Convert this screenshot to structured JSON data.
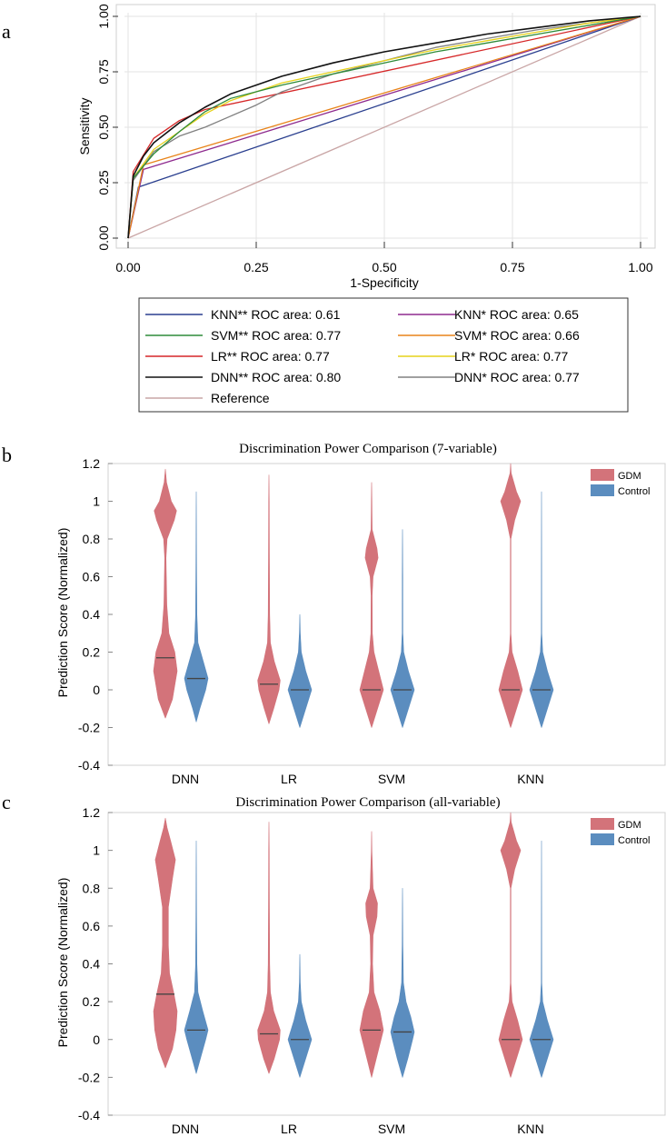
{
  "panel_labels": {
    "a": "a",
    "b": "b",
    "c": "c"
  },
  "colors": {
    "knn2": "#2a3f8f",
    "svm2": "#2e8b3a",
    "lr2": "#d62728",
    "dnn2": "#111111",
    "knn1": "#8e2a8e",
    "svm1": "#e8841a",
    "lr1": "#e6d21a",
    "dnn1": "#808080",
    "ref": "#c9a5a5",
    "gdm": "#d3737a",
    "control": "#5b8dbf",
    "median": "#444444"
  },
  "chart_data": [
    {
      "id": "roc",
      "type": "line",
      "title": "",
      "xlabel": "1-Specificity",
      "ylabel": "Sensitivity",
      "xlim": [
        0,
        1
      ],
      "ylim": [
        0,
        1
      ],
      "x_ticks": [
        "0.00",
        "0.25",
        "0.50",
        "0.75",
        "1.00"
      ],
      "y_ticks": [
        "0.00",
        "0.25",
        "0.50",
        "0.75",
        "1.00"
      ],
      "grid": true,
      "legend_position": "bottom",
      "series": [
        {
          "key": "knn2",
          "name": "KNN** ROC area: 0.61",
          "x": [
            0,
            0.02,
            1
          ],
          "y": [
            0,
            0.23,
            1
          ]
        },
        {
          "key": "svm2",
          "name": "SVM** ROC area: 0.77",
          "x": [
            0,
            0.01,
            0.05,
            0.1,
            0.15,
            0.2,
            0.3,
            0.4,
            0.5,
            0.6,
            0.7,
            0.8,
            0.9,
            1
          ],
          "y": [
            0,
            0.27,
            0.38,
            0.48,
            0.57,
            0.63,
            0.69,
            0.74,
            0.79,
            0.84,
            0.88,
            0.92,
            0.96,
            1
          ]
        },
        {
          "key": "lr2",
          "name": "LR** ROC area: 0.77",
          "x": [
            0,
            0.01,
            0.05,
            0.1,
            0.15,
            1
          ],
          "y": [
            0,
            0.3,
            0.45,
            0.53,
            0.58,
            1
          ]
        },
        {
          "key": "dnn2",
          "name": "DNN** ROC area: 0.80",
          "x": [
            0,
            0.01,
            0.03,
            0.05,
            0.1,
            0.15,
            0.2,
            0.3,
            0.4,
            0.5,
            0.6,
            0.7,
            0.8,
            0.9,
            1
          ],
          "y": [
            0,
            0.28,
            0.37,
            0.43,
            0.52,
            0.59,
            0.65,
            0.73,
            0.79,
            0.84,
            0.88,
            0.92,
            0.95,
            0.98,
            1
          ]
        },
        {
          "key": "knn1",
          "name": "KNN* ROC area: 0.65",
          "x": [
            0,
            0.03,
            1
          ],
          "y": [
            0,
            0.31,
            1
          ]
        },
        {
          "key": "svm1",
          "name": "SVM* ROC area: 0.66",
          "x": [
            0,
            0.03,
            1
          ],
          "y": [
            0,
            0.33,
            1
          ]
        },
        {
          "key": "lr1",
          "name": "LR* ROC area: 0.77",
          "x": [
            0,
            0.01,
            0.05,
            0.1,
            0.15,
            0.2,
            0.3,
            0.4,
            0.5,
            0.6,
            0.7,
            0.8,
            0.9,
            1
          ],
          "y": [
            0,
            0.27,
            0.4,
            0.48,
            0.56,
            0.62,
            0.7,
            0.75,
            0.8,
            0.85,
            0.89,
            0.93,
            0.97,
            1
          ]
        },
        {
          "key": "dnn1",
          "name": "DNN* ROC area: 0.77",
          "x": [
            0,
            0.01,
            0.05,
            0.1,
            0.15,
            0.2,
            0.25,
            0.3,
            0.4,
            0.5,
            0.6,
            0.7,
            0.8,
            0.9,
            1
          ],
          "y": [
            0,
            0.26,
            0.39,
            0.46,
            0.5,
            0.55,
            0.6,
            0.66,
            0.74,
            0.8,
            0.86,
            0.9,
            0.94,
            0.97,
            1
          ]
        },
        {
          "key": "ref",
          "name": "Reference",
          "x": [
            0,
            1
          ],
          "y": [
            0,
            1
          ]
        }
      ]
    },
    {
      "id": "violin7",
      "type": "violin",
      "title": "Discrimination Power Comparison (7-variable)",
      "xlabel": "",
      "ylabel": "Prediction Score (Normalized)",
      "ylim": [
        -0.4,
        1.2
      ],
      "y_ticks": [
        "-0.4",
        "-0.2",
        "0",
        "0.2",
        "0.4",
        "0.6",
        "0.8",
        "1",
        "1.2"
      ],
      "categories": [
        "DNN",
        "LR",
        "SVM",
        "KNN"
      ],
      "legend": [
        "GDM",
        "Control"
      ],
      "legend_position": "top-right",
      "series": [
        {
          "name": "GDM",
          "medians": [
            0.17,
            0.03,
            0.0,
            0.0
          ],
          "shapes": [
            [
              [
                -0.15,
                0
              ],
              [
                -0.05,
                0.6
              ],
              [
                0.1,
                1.0
              ],
              [
                0.2,
                0.8
              ],
              [
                0.3,
                0.3
              ],
              [
                0.45,
                0.12
              ],
              [
                0.7,
                0.05
              ],
              [
                0.8,
                0.15
              ],
              [
                0.9,
                0.75
              ],
              [
                0.95,
                0.95
              ],
              [
                1.0,
                0.5
              ],
              [
                1.1,
                0.1
              ],
              [
                1.17,
                0
              ]
            ],
            [
              [
                -0.18,
                0
              ],
              [
                -0.1,
                0.4
              ],
              [
                0.0,
                0.85
              ],
              [
                0.05,
                0.95
              ],
              [
                0.15,
                0.45
              ],
              [
                0.25,
                0.12
              ],
              [
                0.4,
                0.06
              ],
              [
                0.7,
                0.04
              ],
              [
                1.0,
                0.02
              ],
              [
                1.14,
                0
              ]
            ],
            [
              [
                -0.2,
                0
              ],
              [
                -0.1,
                0.5
              ],
              [
                0.0,
                1.0
              ],
              [
                0.1,
                0.6
              ],
              [
                0.2,
                0.2
              ],
              [
                0.3,
                0.06
              ],
              [
                0.5,
                0.05
              ],
              [
                0.6,
                0.12
              ],
              [
                0.7,
                0.55
              ],
              [
                0.75,
                0.45
              ],
              [
                0.85,
                0.05
              ],
              [
                1.0,
                0.02
              ],
              [
                1.1,
                0
              ]
            ],
            [
              [
                -0.2,
                0
              ],
              [
                -0.1,
                0.5
              ],
              [
                0.0,
                1.0
              ],
              [
                0.1,
                0.6
              ],
              [
                0.2,
                0.12
              ],
              [
                0.3,
                0.02
              ],
              [
                0.8,
                0.02
              ],
              [
                0.9,
                0.35
              ],
              [
                1.0,
                0.85
              ],
              [
                1.05,
                0.5
              ],
              [
                1.15,
                0.05
              ],
              [
                1.2,
                0
              ]
            ]
          ]
        },
        {
          "name": "Control",
          "medians": [
            0.06,
            0.0,
            0.0,
            0.0
          ],
          "shapes": [
            [
              [
                -0.17,
                0
              ],
              [
                -0.1,
                0.3
              ],
              [
                0.0,
                0.8
              ],
              [
                0.06,
                1.0
              ],
              [
                0.15,
                0.6
              ],
              [
                0.25,
                0.15
              ],
              [
                0.4,
                0.05
              ],
              [
                0.7,
                0.02
              ],
              [
                1.05,
                0
              ]
            ],
            [
              [
                -0.2,
                0
              ],
              [
                -0.1,
                0.5
              ],
              [
                0.0,
                1.0
              ],
              [
                0.1,
                0.5
              ],
              [
                0.2,
                0.12
              ],
              [
                0.3,
                0.04
              ],
              [
                0.4,
                0
              ]
            ],
            [
              [
                -0.2,
                0
              ],
              [
                -0.1,
                0.5
              ],
              [
                0.0,
                1.0
              ],
              [
                0.1,
                0.5
              ],
              [
                0.2,
                0.1
              ],
              [
                0.3,
                0.03
              ],
              [
                0.6,
                0.02
              ],
              [
                0.85,
                0
              ]
            ],
            [
              [
                -0.2,
                0
              ],
              [
                -0.1,
                0.5
              ],
              [
                0.0,
                1.0
              ],
              [
                0.1,
                0.5
              ],
              [
                0.2,
                0.1
              ],
              [
                0.3,
                0.02
              ],
              [
                1.05,
                0
              ]
            ]
          ]
        }
      ]
    },
    {
      "id": "violinAll",
      "type": "violin",
      "title": "Discrimination Power Comparison (all-variable)",
      "xlabel": "",
      "ylabel": "Prediction Score (Normalized)",
      "ylim": [
        -0.4,
        1.2
      ],
      "y_ticks": [
        "-0.4",
        "-0.2",
        "0",
        "0.2",
        "0.4",
        "0.6",
        "0.8",
        "1",
        "1.2"
      ],
      "categories": [
        "DNN",
        "LR",
        "SVM",
        "KNN"
      ],
      "legend": [
        "GDM",
        "Control"
      ],
      "legend_position": "top-right",
      "series": [
        {
          "name": "GDM",
          "medians": [
            0.24,
            0.03,
            0.05,
            0.0
          ],
          "shapes": [
            [
              [
                -0.15,
                0
              ],
              [
                -0.05,
                0.6
              ],
              [
                0.05,
                0.9
              ],
              [
                0.15,
                1.0
              ],
              [
                0.25,
                0.7
              ],
              [
                0.35,
                0.35
              ],
              [
                0.5,
                0.25
              ],
              [
                0.7,
                0.25
              ],
              [
                0.85,
                0.6
              ],
              [
                0.95,
                0.85
              ],
              [
                1.05,
                0.45
              ],
              [
                1.12,
                0.15
              ],
              [
                1.17,
                0
              ]
            ],
            [
              [
                -0.18,
                0
              ],
              [
                -0.1,
                0.45
              ],
              [
                0.0,
                0.9
              ],
              [
                0.05,
                0.95
              ],
              [
                0.15,
                0.4
              ],
              [
                0.25,
                0.12
              ],
              [
                0.4,
                0.06
              ],
              [
                0.7,
                0.04
              ],
              [
                1.0,
                0.02
              ],
              [
                1.15,
                0
              ]
            ],
            [
              [
                -0.2,
                0
              ],
              [
                -0.1,
                0.4
              ],
              [
                0.0,
                0.8
              ],
              [
                0.05,
                1.0
              ],
              [
                0.15,
                0.7
              ],
              [
                0.25,
                0.2
              ],
              [
                0.4,
                0.08
              ],
              [
                0.55,
                0.12
              ],
              [
                0.65,
                0.45
              ],
              [
                0.72,
                0.5
              ],
              [
                0.8,
                0.12
              ],
              [
                1.0,
                0.02
              ],
              [
                1.1,
                0
              ]
            ],
            [
              [
                -0.2,
                0
              ],
              [
                -0.1,
                0.5
              ],
              [
                0.0,
                1.0
              ],
              [
                0.1,
                0.6
              ],
              [
                0.2,
                0.12
              ],
              [
                0.3,
                0.02
              ],
              [
                0.8,
                0.02
              ],
              [
                0.9,
                0.35
              ],
              [
                1.0,
                0.85
              ],
              [
                1.05,
                0.5
              ],
              [
                1.15,
                0.05
              ],
              [
                1.2,
                0
              ]
            ]
          ]
        },
        {
          "name": "Control",
          "medians": [
            0.05,
            0.0,
            0.04,
            0.0
          ],
          "shapes": [
            [
              [
                -0.18,
                0
              ],
              [
                -0.1,
                0.35
              ],
              [
                0.0,
                0.8
              ],
              [
                0.05,
                1.0
              ],
              [
                0.15,
                0.55
              ],
              [
                0.25,
                0.15
              ],
              [
                0.4,
                0.05
              ],
              [
                0.7,
                0.02
              ],
              [
                1.05,
                0
              ]
            ],
            [
              [
                -0.2,
                0
              ],
              [
                -0.1,
                0.5
              ],
              [
                0.0,
                1.0
              ],
              [
                0.1,
                0.5
              ],
              [
                0.2,
                0.12
              ],
              [
                0.3,
                0.04
              ],
              [
                0.45,
                0
              ]
            ],
            [
              [
                -0.2,
                0
              ],
              [
                -0.1,
                0.45
              ],
              [
                0.0,
                0.85
              ],
              [
                0.04,
                1.0
              ],
              [
                0.12,
                0.7
              ],
              [
                0.2,
                0.3
              ],
              [
                0.3,
                0.08
              ],
              [
                0.5,
                0.03
              ],
              [
                0.8,
                0
              ]
            ],
            [
              [
                -0.2,
                0
              ],
              [
                -0.1,
                0.5
              ],
              [
                0.0,
                1.0
              ],
              [
                0.1,
                0.5
              ],
              [
                0.2,
                0.1
              ],
              [
                0.3,
                0.02
              ],
              [
                1.05,
                0
              ]
            ]
          ]
        }
      ]
    }
  ]
}
